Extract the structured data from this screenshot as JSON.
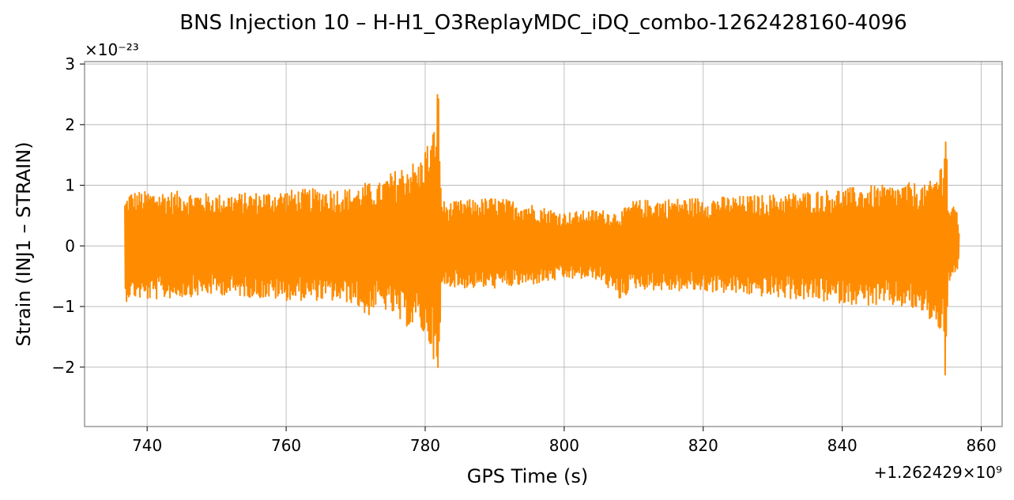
{
  "chart_data": {
    "type": "line",
    "title": "BNS Injection 10 – H-H1_O3ReplayMDC_iDQ_combo-1262428160-4096",
    "xlabel": "GPS Time (s)",
    "ylabel": "Strain (INJ1 – STRAIN)",
    "x_offset_label": "+1.262429×10⁹",
    "y_scale_label": "×10⁻²³",
    "xlim": [
      731,
      863
    ],
    "ylim": [
      -2.98,
      3.04
    ],
    "x_ticks": [
      740,
      760,
      780,
      800,
      820,
      840,
      860
    ],
    "x_tick_labels": [
      "740",
      "760",
      "780",
      "800",
      "820",
      "840",
      "860"
    ],
    "y_ticks": [
      -2,
      -1,
      0,
      1,
      2,
      3
    ],
    "y_tick_labels": [
      "−2",
      "−1",
      "0",
      "1",
      "2",
      "3"
    ],
    "grid": true,
    "series": [
      {
        "color": "#ff8c00",
        "x": [
          736.8,
          737.5,
          740,
          745,
          750,
          755,
          760,
          765,
          770,
          771.5,
          773,
          775,
          776.5,
          778,
          779,
          780,
          781,
          781.5,
          781.9,
          782.3,
          783,
          785,
          790,
          795,
          800,
          805,
          808,
          810,
          815,
          820,
          825,
          830,
          835,
          840,
          845,
          848,
          850,
          852,
          853,
          854,
          854.5,
          854.9,
          855.2,
          855.8,
          856.5,
          856.8
        ],
        "upper": [
          0.75,
          0.9,
          0.9,
          0.9,
          0.85,
          0.88,
          0.92,
          0.95,
          0.95,
          1.05,
          1.0,
          1.2,
          1.3,
          1.4,
          1.35,
          1.65,
          1.8,
          2.2,
          2.78,
          0.8,
          0.7,
          0.75,
          0.8,
          0.7,
          0.55,
          0.6,
          0.55,
          0.75,
          0.78,
          0.8,
          0.82,
          0.85,
          0.9,
          0.95,
          1.0,
          1.0,
          1.05,
          1.0,
          1.1,
          1.3,
          1.5,
          2.3,
          0.7,
          0.65,
          0.62,
          0.3
        ],
        "lower": [
          -0.95,
          -0.85,
          -0.9,
          -0.85,
          -0.8,
          -0.85,
          -0.9,
          -0.9,
          -0.95,
          -1.2,
          -1.0,
          -1.1,
          -1.3,
          -1.35,
          -1.3,
          -1.55,
          -1.7,
          -2.1,
          -2.7,
          -0.75,
          -0.65,
          -0.7,
          -0.7,
          -0.65,
          -0.55,
          -0.55,
          -0.9,
          -0.7,
          -0.75,
          -0.75,
          -0.8,
          -0.85,
          -0.9,
          -0.95,
          -1.0,
          -1.0,
          -1.05,
          -1.15,
          -1.3,
          -1.4,
          -1.5,
          -2.65,
          -0.6,
          -0.55,
          -0.55,
          -0.2
        ]
      }
    ]
  }
}
